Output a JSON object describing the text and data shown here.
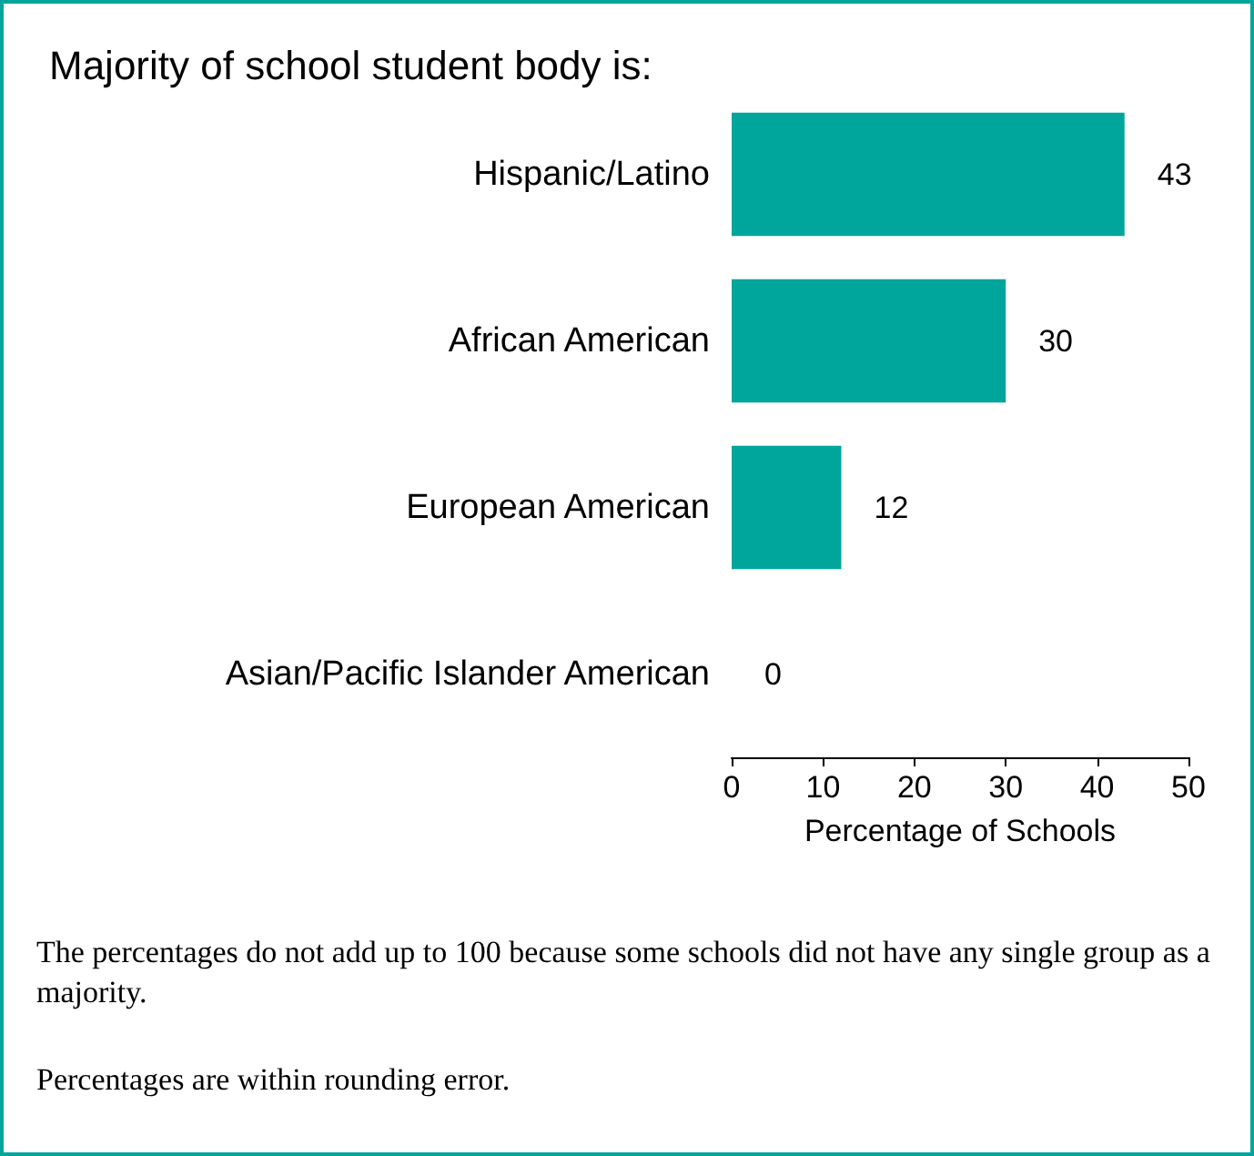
{
  "chart_data": {
    "type": "bar",
    "orientation": "horizontal",
    "title": "Majority of school student body is:",
    "categories": [
      "Hispanic/Latino",
      "African American",
      "European American",
      "Asian/Pacific Islander American"
    ],
    "values": [
      43,
      30,
      12,
      0
    ],
    "color": "#00a59c",
    "data_labels": true,
    "xlim": [
      0,
      50
    ],
    "xticks": [
      0,
      10,
      20,
      30,
      40,
      50
    ],
    "xlabel": "Percentage of Schools",
    "annotations": [
      "The percentages do not add up to 100 because some schools did not have any single group as a majority.",
      "Percentages are within rounding error."
    ]
  }
}
